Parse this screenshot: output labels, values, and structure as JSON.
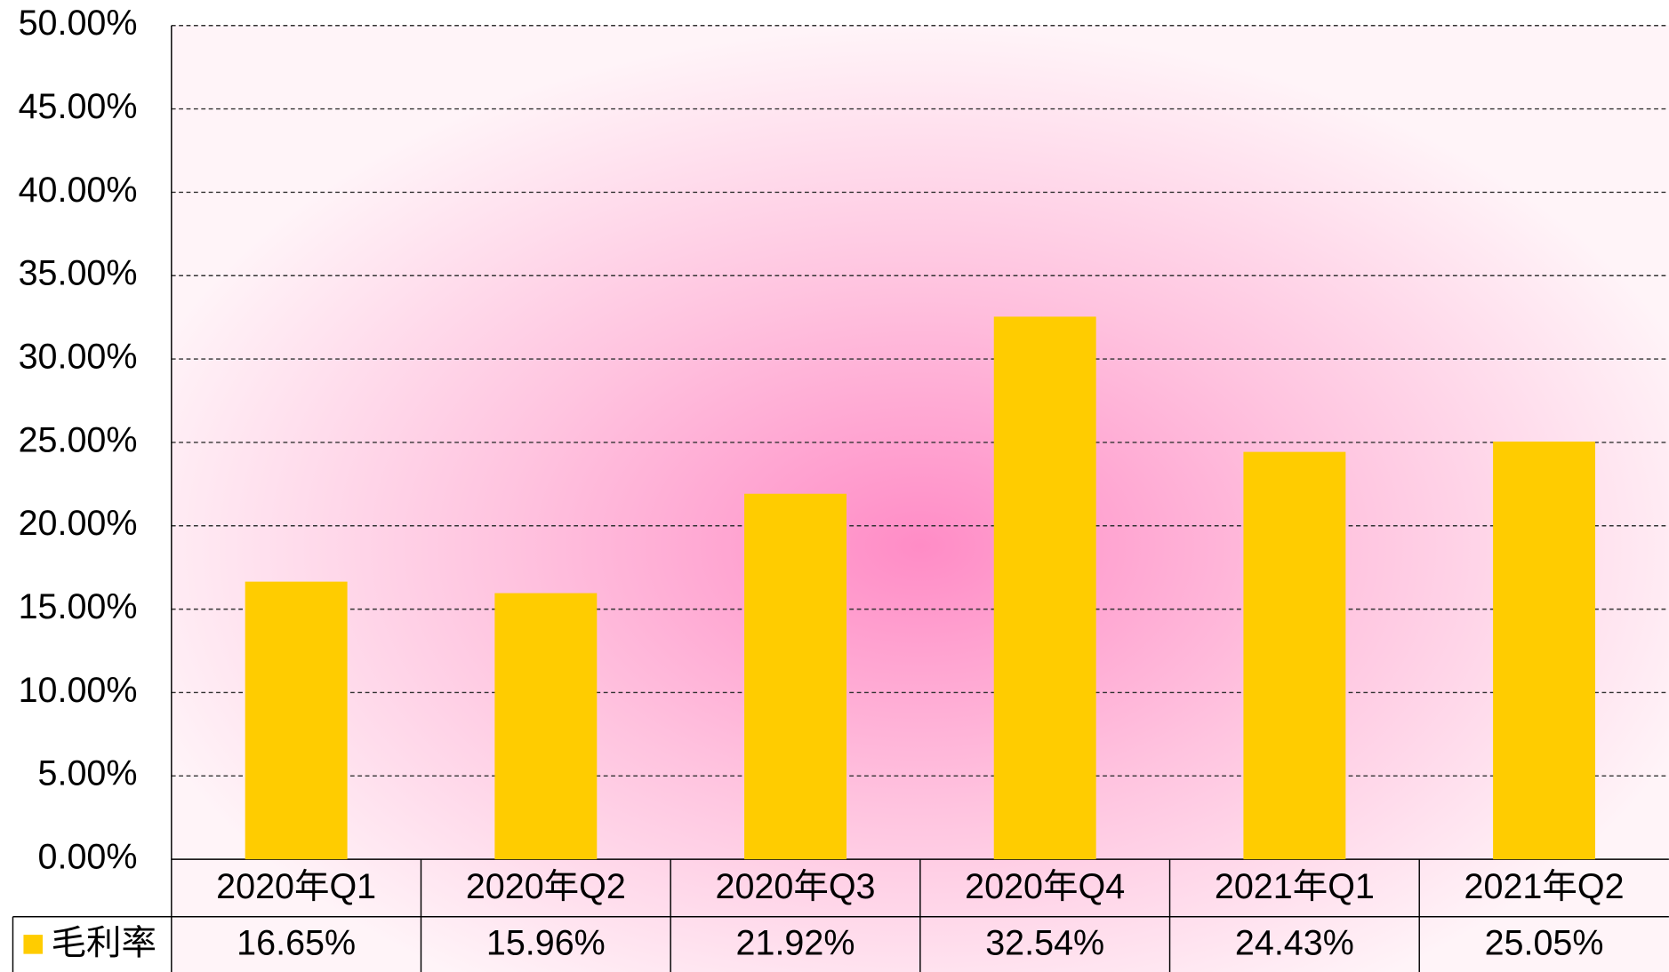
{
  "chart_data": {
    "type": "bar",
    "categories": [
      "2020年Q1",
      "2020年Q2",
      "2020年Q3",
      "2020年Q4",
      "2021年Q1",
      "2021年Q2"
    ],
    "series": [
      {
        "name": "毛利率",
        "color": "#ffcc00",
        "values": [
          16.65,
          15.96,
          21.92,
          32.54,
          24.43,
          25.05
        ],
        "value_labels": [
          "16.65%",
          "15.96%",
          "21.92%",
          "32.54%",
          "24.43%",
          "25.05%"
        ]
      }
    ],
    "ylim": [
      0,
      50
    ],
    "yticks": [
      {
        "value": 0,
        "label": "0.00%"
      },
      {
        "value": 5,
        "label": "5.00%"
      },
      {
        "value": 10,
        "label": "10.00%"
      },
      {
        "value": 15,
        "label": "15.00%"
      },
      {
        "value": 20,
        "label": "20.00%"
      },
      {
        "value": 25,
        "label": "25.00%"
      },
      {
        "value": 30,
        "label": "30.00%"
      },
      {
        "value": 35,
        "label": "35.00%"
      },
      {
        "value": 40,
        "label": "40.00%"
      },
      {
        "value": 45,
        "label": "45.00%"
      },
      {
        "value": 50,
        "label": "50.00%"
      }
    ],
    "grid": true
  }
}
